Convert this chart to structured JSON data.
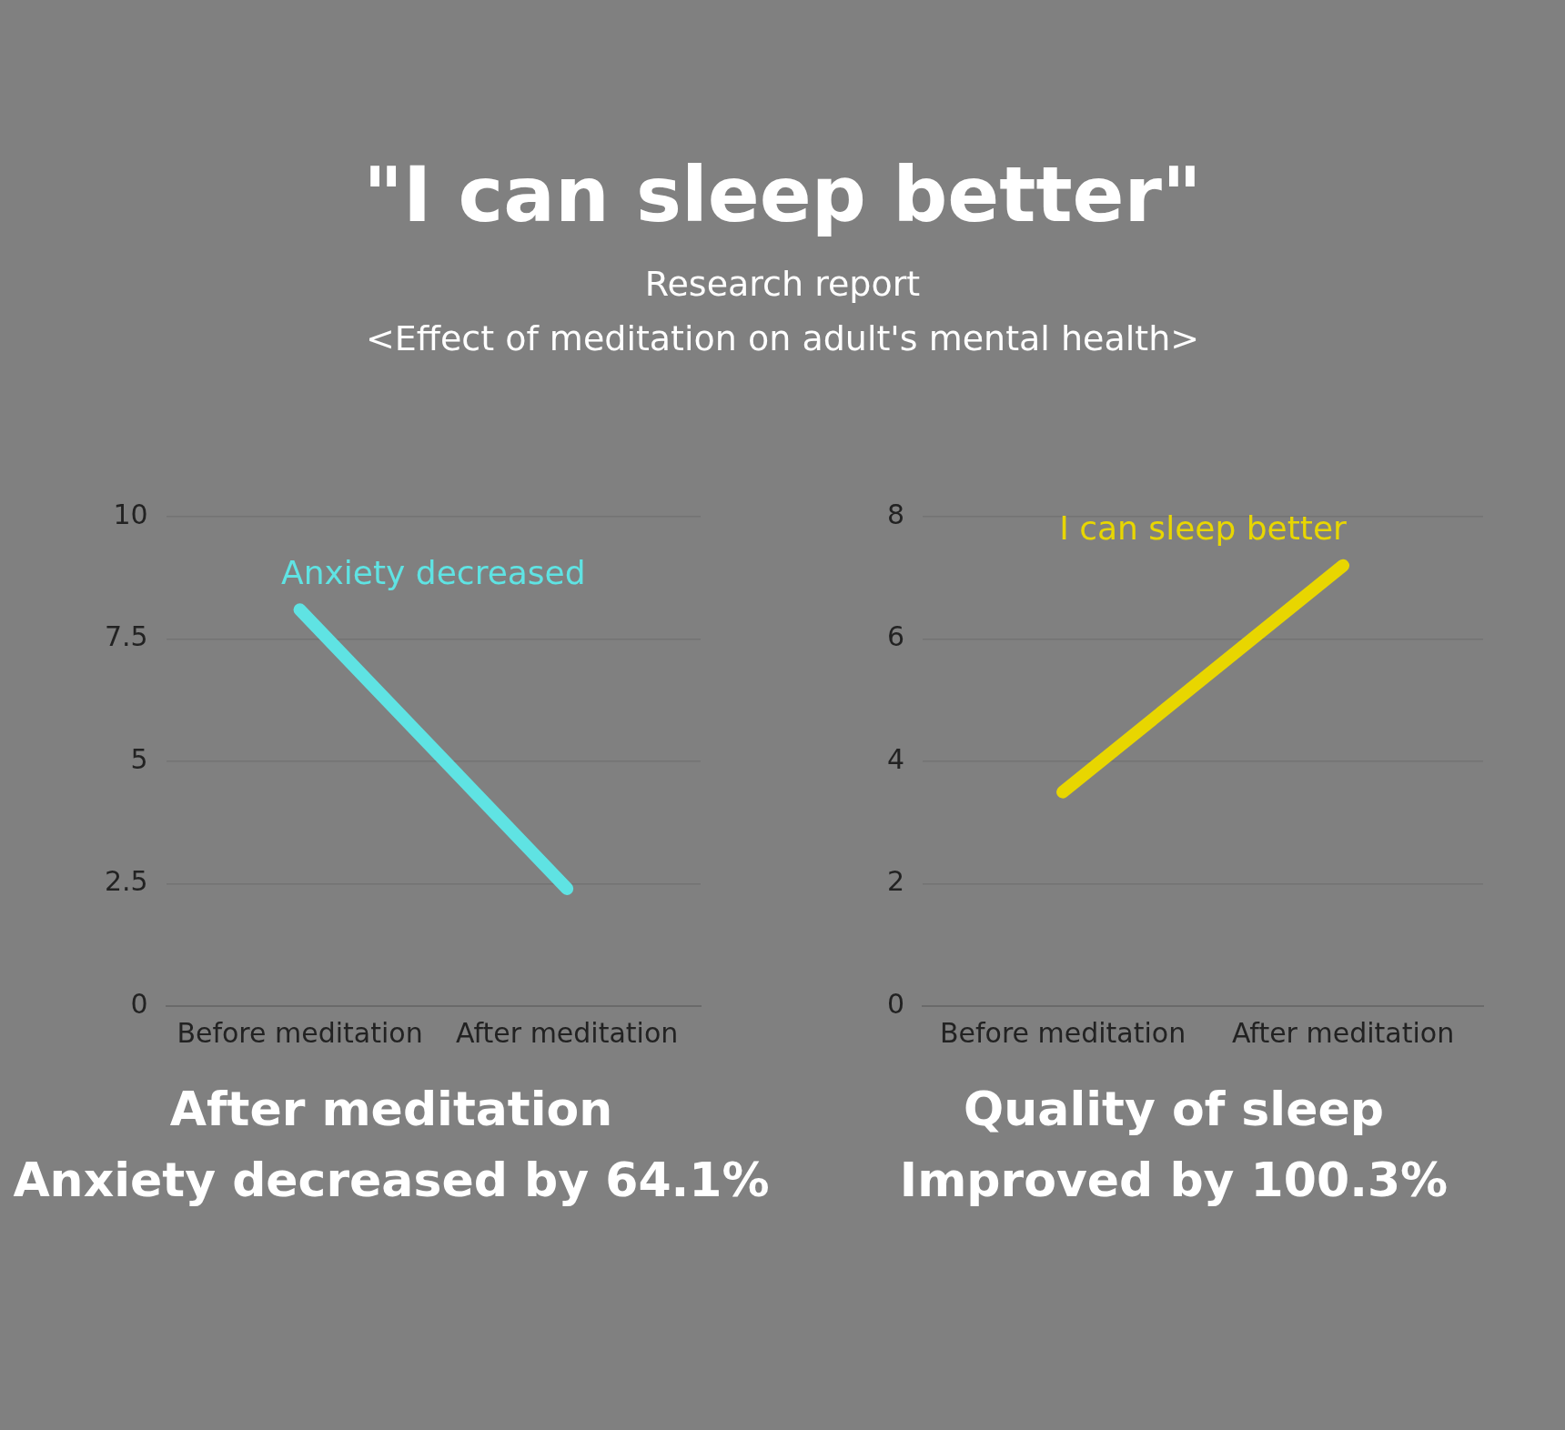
{
  "chart_data": [
    {
      "type": "line",
      "title": "\"I can sleep better\"",
      "subtitle": "Research report\n<Effect of meditation on adult's mental health>",
      "categories": [
        "Before meditation",
        "After meditation"
      ],
      "series": [
        {
          "name": "Anxiety decreased",
          "color": "#5fe3e3",
          "values": [
            8.1,
            2.4
          ]
        }
      ],
      "ylim": [
        0,
        10
      ],
      "yticks": [
        0,
        2.5,
        5,
        7.5,
        10
      ],
      "grid": "y",
      "legend": false,
      "marker": "none",
      "line_style": "solid",
      "annotations": [
        "After meditation",
        "Anxiety decreased by 64.1%"
      ]
    },
    {
      "type": "line",
      "categories": [
        "Before meditation",
        "After meditation"
      ],
      "series": [
        {
          "name": "I can sleep better",
          "color": "#e8d600",
          "values": [
            3.5,
            7.2
          ]
        }
      ],
      "ylim": [
        0,
        8
      ],
      "yticks": [
        0,
        2,
        4,
        6,
        8
      ],
      "grid": "y",
      "legend": false,
      "marker": "none",
      "line_style": "solid",
      "annotations": [
        "Quality of sleep",
        "Improved by 100.3%"
      ]
    }
  ]
}
